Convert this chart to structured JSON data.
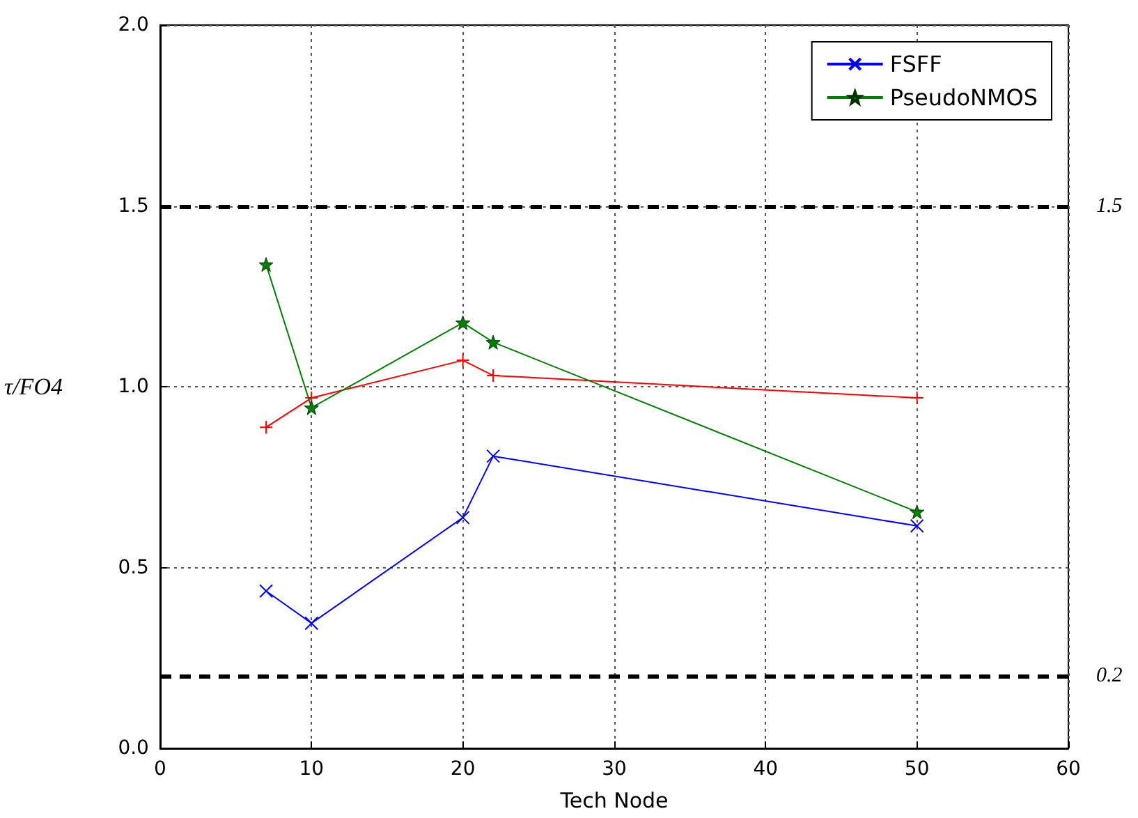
{
  "chart_data": {
    "type": "line",
    "xlabel": "Tech Node",
    "ylabel": "τ/FO4",
    "xlim": [
      0,
      60
    ],
    "xticks": [
      0,
      10,
      20,
      30,
      40,
      50,
      60
    ],
    "ylim": [
      0,
      2
    ],
    "yticks": [
      {
        "value": 0,
        "label": "0.0"
      },
      {
        "value": 0.5,
        "label": "0.5"
      },
      {
        "value": 1,
        "label": "1.0"
      },
      {
        "value": 1.5,
        "label": "1.5"
      },
      {
        "value": 2,
        "label": "2.0"
      }
    ],
    "grid": true,
    "legend": "top right",
    "line_style": "solid",
    "series": [
      {
        "name": "FSFF",
        "color": "#0000ff",
        "marker": "cross",
        "x": [
          7,
          10,
          20,
          22,
          50
        ],
        "values": [
          0.435,
          0.346,
          0.638,
          0.808,
          0.615
        ]
      },
      {
        "color": "#ff0000",
        "marker": "plus",
        "x": [
          7,
          10,
          20,
          22,
          50
        ],
        "values": [
          0.888,
          0.969,
          1.073,
          1.031,
          0.969
        ]
      },
      {
        "name": "PseudoNMOS",
        "color": "#008000",
        "marker": "star",
        "x": [
          7,
          10,
          20,
          22,
          50
        ],
        "values": [
          1.338,
          0.942,
          1.177,
          1.123,
          0.654
        ]
      }
    ],
    "ref_lines": [
      {
        "axis": "y",
        "value": 1.5,
        "label": "1.5",
        "color": "#000000",
        "line_style": "dashed"
      },
      {
        "axis": "y",
        "value": 0.2,
        "label": "0.2",
        "color": "#000000",
        "line_style": "dashed"
      }
    ]
  }
}
